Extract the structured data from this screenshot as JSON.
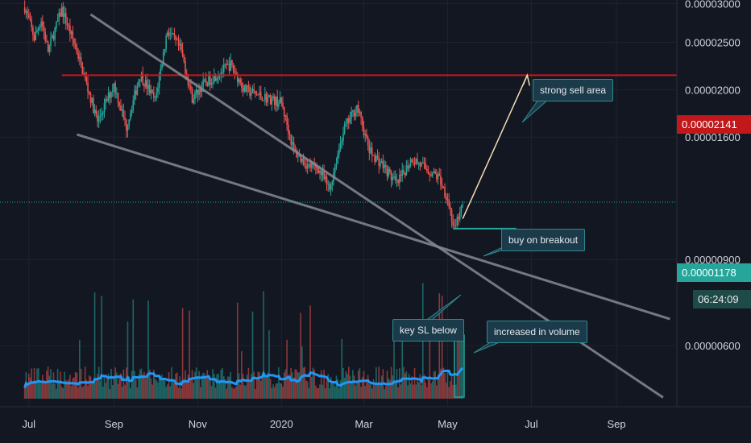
{
  "chart_data": {
    "type": "candlestick",
    "y_axis": {
      "scale": "log",
      "tick_labels": [
        "0.00003000",
        "0.00002500",
        "0.00002000",
        "0.00001600",
        "0.00000900",
        "0.00000600"
      ],
      "tick_values": [
        3e-05,
        2.5e-05,
        2e-05,
        1.6e-05,
        9e-06,
        6e-06
      ],
      "range": [
        4.5e-06,
        3.05e-05
      ]
    },
    "x_axis": {
      "tick_labels": [
        "Jul",
        "Sep",
        "Nov",
        "2020",
        "Mar",
        "May",
        "Jul",
        "Sep"
      ],
      "tick_dates": [
        "2019-07-01",
        "2019-09-01",
        "2019-11-01",
        "2020-01-01",
        "2020-03-01",
        "2020-05-01",
        "2020-07-01",
        "2020-09-01"
      ],
      "range": [
        "2019-06-10",
        "2020-10-15"
      ]
    },
    "price_marks": {
      "resistance_label": "0.00002141",
      "resistance_value": 2.141e-05,
      "last_price_label": "0.00001178",
      "last_price_value": 1.178e-05,
      "countdown": "06:24:09"
    },
    "annotations": {
      "strong_sell": "strong sell area",
      "buy_breakout": "buy on breakout",
      "key_sl": "key SL below",
      "volume_note": "increased in volume"
    },
    "trendlines": {
      "upper": [
        [
          "2019-08-15",
          2.85e-05
        ],
        [
          "2020-10-05",
          4.7e-06
        ]
      ],
      "lower": [
        [
          "2019-08-05",
          1.62e-05
        ],
        [
          "2020-10-10",
          6.8e-06
        ]
      ],
      "resistance_start": "2019-07-25",
      "projection": [
        [
          "2020-05-12",
          1.09e-05
        ],
        [
          "2020-06-28",
          2.141e-05
        ]
      ]
    },
    "colors": {
      "up": "#26a69a",
      "down": "#ef5350",
      "resistance": "#c2181b",
      "volume_ma": "#2196f3",
      "trend": "#868993",
      "projection": "#f5deb3"
    }
  }
}
